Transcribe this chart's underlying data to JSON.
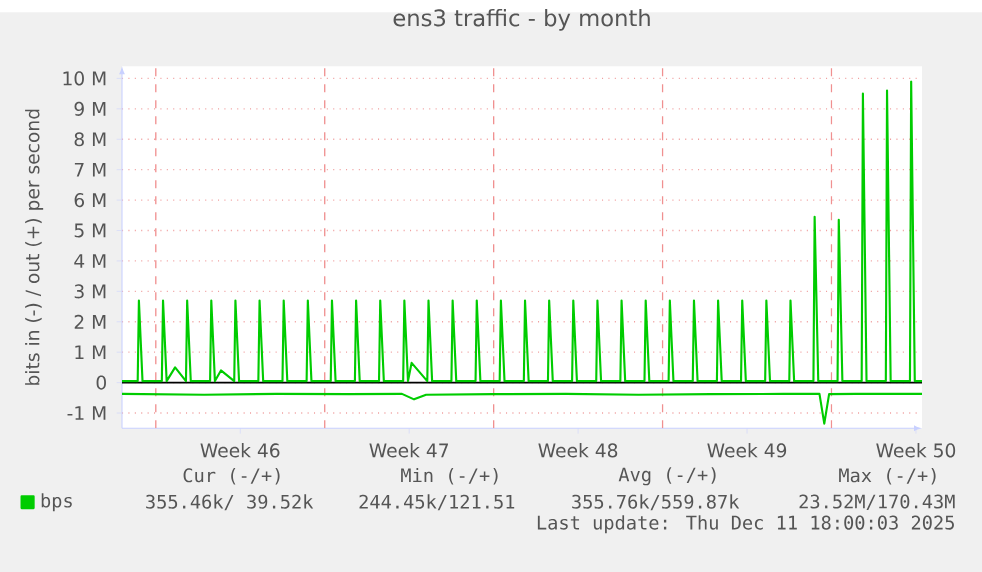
{
  "chart_data": {
    "type": "line",
    "title": "ens3 traffic - by month",
    "ylabel": "bits in (-) / out (+) per second",
    "xlim": [
      "2025-11-08T14:24",
      "2025-12-11T18:00"
    ],
    "ylim": [
      -1.5,
      10.4
    ],
    "xticks": [
      {
        "value": "2025-11-13T12:00",
        "label": "Week 46"
      },
      {
        "value": "2025-11-20T12:00",
        "label": "Week 47"
      },
      {
        "value": "2025-11-27T12:00",
        "label": "Week 48"
      },
      {
        "value": "2025-12-04T12:00",
        "label": "Week 49"
      },
      {
        "value": "2025-12-11T12:00",
        "label": "Week 50"
      }
    ],
    "yticks": [
      {
        "value": -1,
        "label": "-1 M"
      },
      0,
      {
        "value": 1,
        "label": "1 M"
      },
      {
        "value": 2,
        "label": "2 M"
      },
      {
        "value": 3,
        "label": "3 M"
      },
      {
        "value": 4,
        "label": "4 M"
      },
      {
        "value": 5,
        "label": "5 M"
      },
      {
        "value": 6,
        "label": "6 M"
      },
      {
        "value": 7,
        "label": "7 M"
      },
      {
        "value": 8,
        "label": "8 M"
      },
      {
        "value": 9,
        "label": "9 M"
      },
      {
        "value": 10,
        "label": "10 M"
      }
    ],
    "grid": "y",
    "legend": "bottom left",
    "marker": "none",
    "line_style": "solid",
    "ref_lines": [
      {
        "axis": "x",
        "value": "2025-11-10",
        "color": "#f09090",
        "line_style": "dashed"
      },
      {
        "axis": "x",
        "value": "2025-11-17",
        "color": "#f09090",
        "line_style": "dashed"
      },
      {
        "axis": "x",
        "value": "2025-11-24",
        "color": "#f09090",
        "line_style": "dashed"
      },
      {
        "axis": "x",
        "value": "2025-12-01",
        "color": "#f09090",
        "line_style": "dashed"
      },
      {
        "axis": "x",
        "value": "2025-12-08",
        "color": "#f09090",
        "line_style": "dashed"
      },
      {
        "axis": "y",
        "value": 0,
        "color": "#000000",
        "line_style": "solid"
      }
    ],
    "series": [
      {
        "name": "bps",
        "color": "#00cc00",
        "x": [
          "2025-11-08T14:24",
          "2025-11-09T06:00",
          "2025-11-09T07:12",
          "2025-11-09T10:48",
          "2025-11-10T06:00",
          "2025-11-10T07:12",
          "2025-11-10T10:48",
          "2025-11-10T19:12",
          "2025-11-11T06:00",
          "2025-11-11T07:12",
          "2025-11-11T10:48",
          "2025-11-12T06:00",
          "2025-11-12T07:12",
          "2025-11-12T10:48",
          "2025-11-12T16:48",
          "2025-11-13T06:00",
          "2025-11-13T07:12",
          "2025-11-13T10:48",
          "2025-11-14T06:00",
          "2025-11-14T07:12",
          "2025-11-14T10:48",
          "2025-11-15T06:00",
          "2025-11-15T07:12",
          "2025-11-15T10:48",
          "2025-11-16T06:00",
          "2025-11-16T07:12",
          "2025-11-16T10:48",
          "2025-11-17T06:00",
          "2025-11-17T07:12",
          "2025-11-17T10:48",
          "2025-11-18T06:00",
          "2025-11-18T07:12",
          "2025-11-18T10:48",
          "2025-11-19T06:00",
          "2025-11-19T07:12",
          "2025-11-19T10:48",
          "2025-11-20T06:00",
          "2025-11-20T07:12",
          "2025-11-20T10:48",
          "2025-11-20T14:24",
          "2025-11-21T06:00",
          "2025-11-21T07:12",
          "2025-11-21T10:48",
          "2025-11-22T06:00",
          "2025-11-22T07:12",
          "2025-11-22T10:48",
          "2025-11-23T06:00",
          "2025-11-23T07:12",
          "2025-11-23T10:48",
          "2025-11-24T06:00",
          "2025-11-24T07:12",
          "2025-11-24T10:48",
          "2025-11-25T06:00",
          "2025-11-25T07:12",
          "2025-11-25T10:48",
          "2025-11-26T06:00",
          "2025-11-26T07:12",
          "2025-11-26T10:48",
          "2025-11-27T06:00",
          "2025-11-27T07:12",
          "2025-11-27T10:48",
          "2025-11-28T06:00",
          "2025-11-28T07:12",
          "2025-11-28T10:48",
          "2025-11-29T06:00",
          "2025-11-29T07:12",
          "2025-11-29T10:48",
          "2025-11-30T06:00",
          "2025-11-30T07:12",
          "2025-11-30T10:48",
          "2025-12-01T06:00",
          "2025-12-01T07:12",
          "2025-12-01T10:48",
          "2025-12-02T06:00",
          "2025-12-02T07:12",
          "2025-12-02T10:48",
          "2025-12-03T06:00",
          "2025-12-03T07:12",
          "2025-12-03T10:48",
          "2025-12-04T06:00",
          "2025-12-04T07:12",
          "2025-12-04T10:48",
          "2025-12-05T06:00",
          "2025-12-05T07:12",
          "2025-12-05T10:48",
          "2025-12-06T06:00",
          "2025-12-06T07:12",
          "2025-12-06T10:48",
          "2025-12-07T06:00",
          "2025-12-07T07:12",
          "2025-12-07T10:48",
          "2025-12-08T06:00",
          "2025-12-08T07:12",
          "2025-12-08T10:48",
          "2025-12-09T06:00",
          "2025-12-09T07:12",
          "2025-12-09T10:48",
          "2025-12-10T06:00",
          "2025-12-10T07:12",
          "2025-12-10T10:48",
          "2025-12-11T06:00",
          "2025-12-11T07:12",
          "2025-12-11T10:48",
          "2025-12-11T18:00"
        ],
        "values": [
          0.05,
          0.05,
          2.7,
          0.05,
          0.05,
          2.7,
          0.05,
          0.5,
          0.05,
          2.7,
          0.05,
          0.05,
          2.7,
          0.05,
          0.4,
          0.05,
          2.7,
          0.05,
          0.05,
          2.7,
          0.05,
          0.05,
          2.7,
          0.05,
          0.05,
          2.7,
          0.05,
          0.05,
          2.7,
          0.05,
          0.05,
          2.7,
          0.05,
          0.05,
          2.7,
          0.05,
          0.05,
          2.7,
          0.05,
          0.65,
          0.05,
          2.7,
          0.05,
          0.05,
          2.7,
          0.05,
          0.05,
          2.7,
          0.05,
          0.05,
          2.7,
          0.05,
          0.05,
          2.7,
          0.05,
          0.05,
          2.7,
          0.05,
          0.05,
          2.7,
          0.05,
          0.05,
          2.7,
          0.05,
          0.05,
          2.7,
          0.05,
          0.05,
          2.7,
          0.05,
          0.05,
          2.7,
          0.05,
          0.05,
          2.7,
          0.05,
          0.05,
          2.7,
          0.05,
          0.05,
          2.7,
          0.05,
          0.05,
          2.7,
          0.05,
          0.05,
          2.7,
          0.05,
          0.05,
          5.45,
          0.05,
          0.05,
          5.35,
          0.05,
          0.05,
          9.5,
          0.05,
          0.05,
          9.6,
          0.05,
          0.05,
          9.9,
          0.05,
          0.05
        ]
      },
      {
        "color": "#00cc00",
        "x": [
          "2025-11-08T14:24",
          "2025-11-12",
          "2025-11-15",
          "2025-11-18",
          "2025-11-20T04:48",
          "2025-11-20T16:48",
          "2025-11-21T04:48",
          "2025-11-24",
          "2025-11-27",
          "2025-11-30",
          "2025-12-03",
          "2025-12-06",
          "2025-12-07T12:00",
          "2025-12-07T16:48",
          "2025-12-07T21:36",
          "2025-12-09",
          "2025-12-11T18:00"
        ],
        "values": [
          -0.37,
          -0.4,
          -0.37,
          -0.38,
          -0.37,
          -0.55,
          -0.4,
          -0.38,
          -0.37,
          -0.4,
          -0.38,
          -0.37,
          -0.37,
          -1.35,
          -0.38,
          -0.37,
          -0.37
        ]
      }
    ],
    "annotations": [
      "Cur (-/+)",
      "Min (-/+)",
      "Avg (-/+)",
      "Max (-/+)",
      "355.46k/ 39.52k",
      "244.45k/121.51",
      "355.76k/559.87k",
      "23.52M/170.43M",
      "Last update: Thu Dec 11 18:00:03 2025"
    ]
  }
}
